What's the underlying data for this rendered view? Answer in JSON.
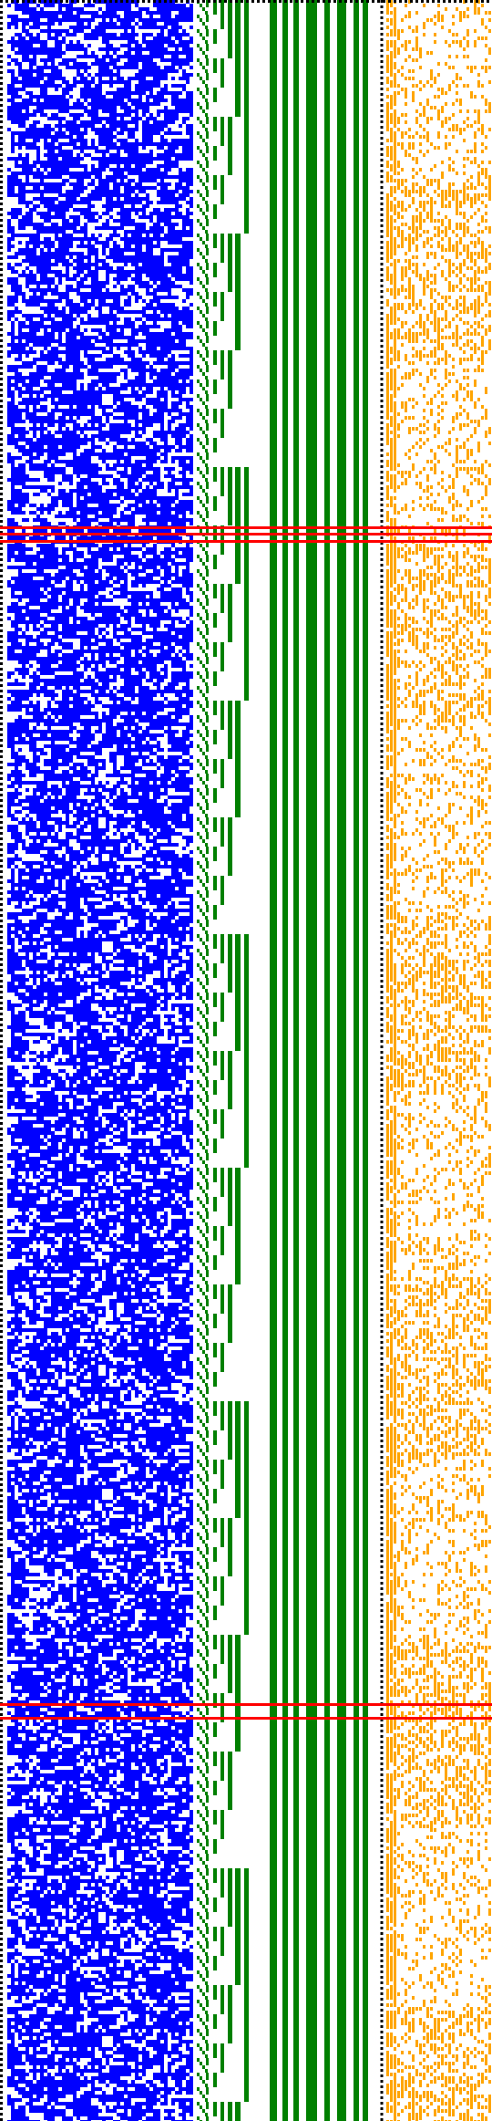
{
  "colors": {
    "background": "#ffffff",
    "random_bits": "#0000ff",
    "counter_bits": "#008000",
    "marker_lines": "#ff0000",
    "dotted_border": "#000000",
    "secondary_bits": "#ffa500"
  }
}
